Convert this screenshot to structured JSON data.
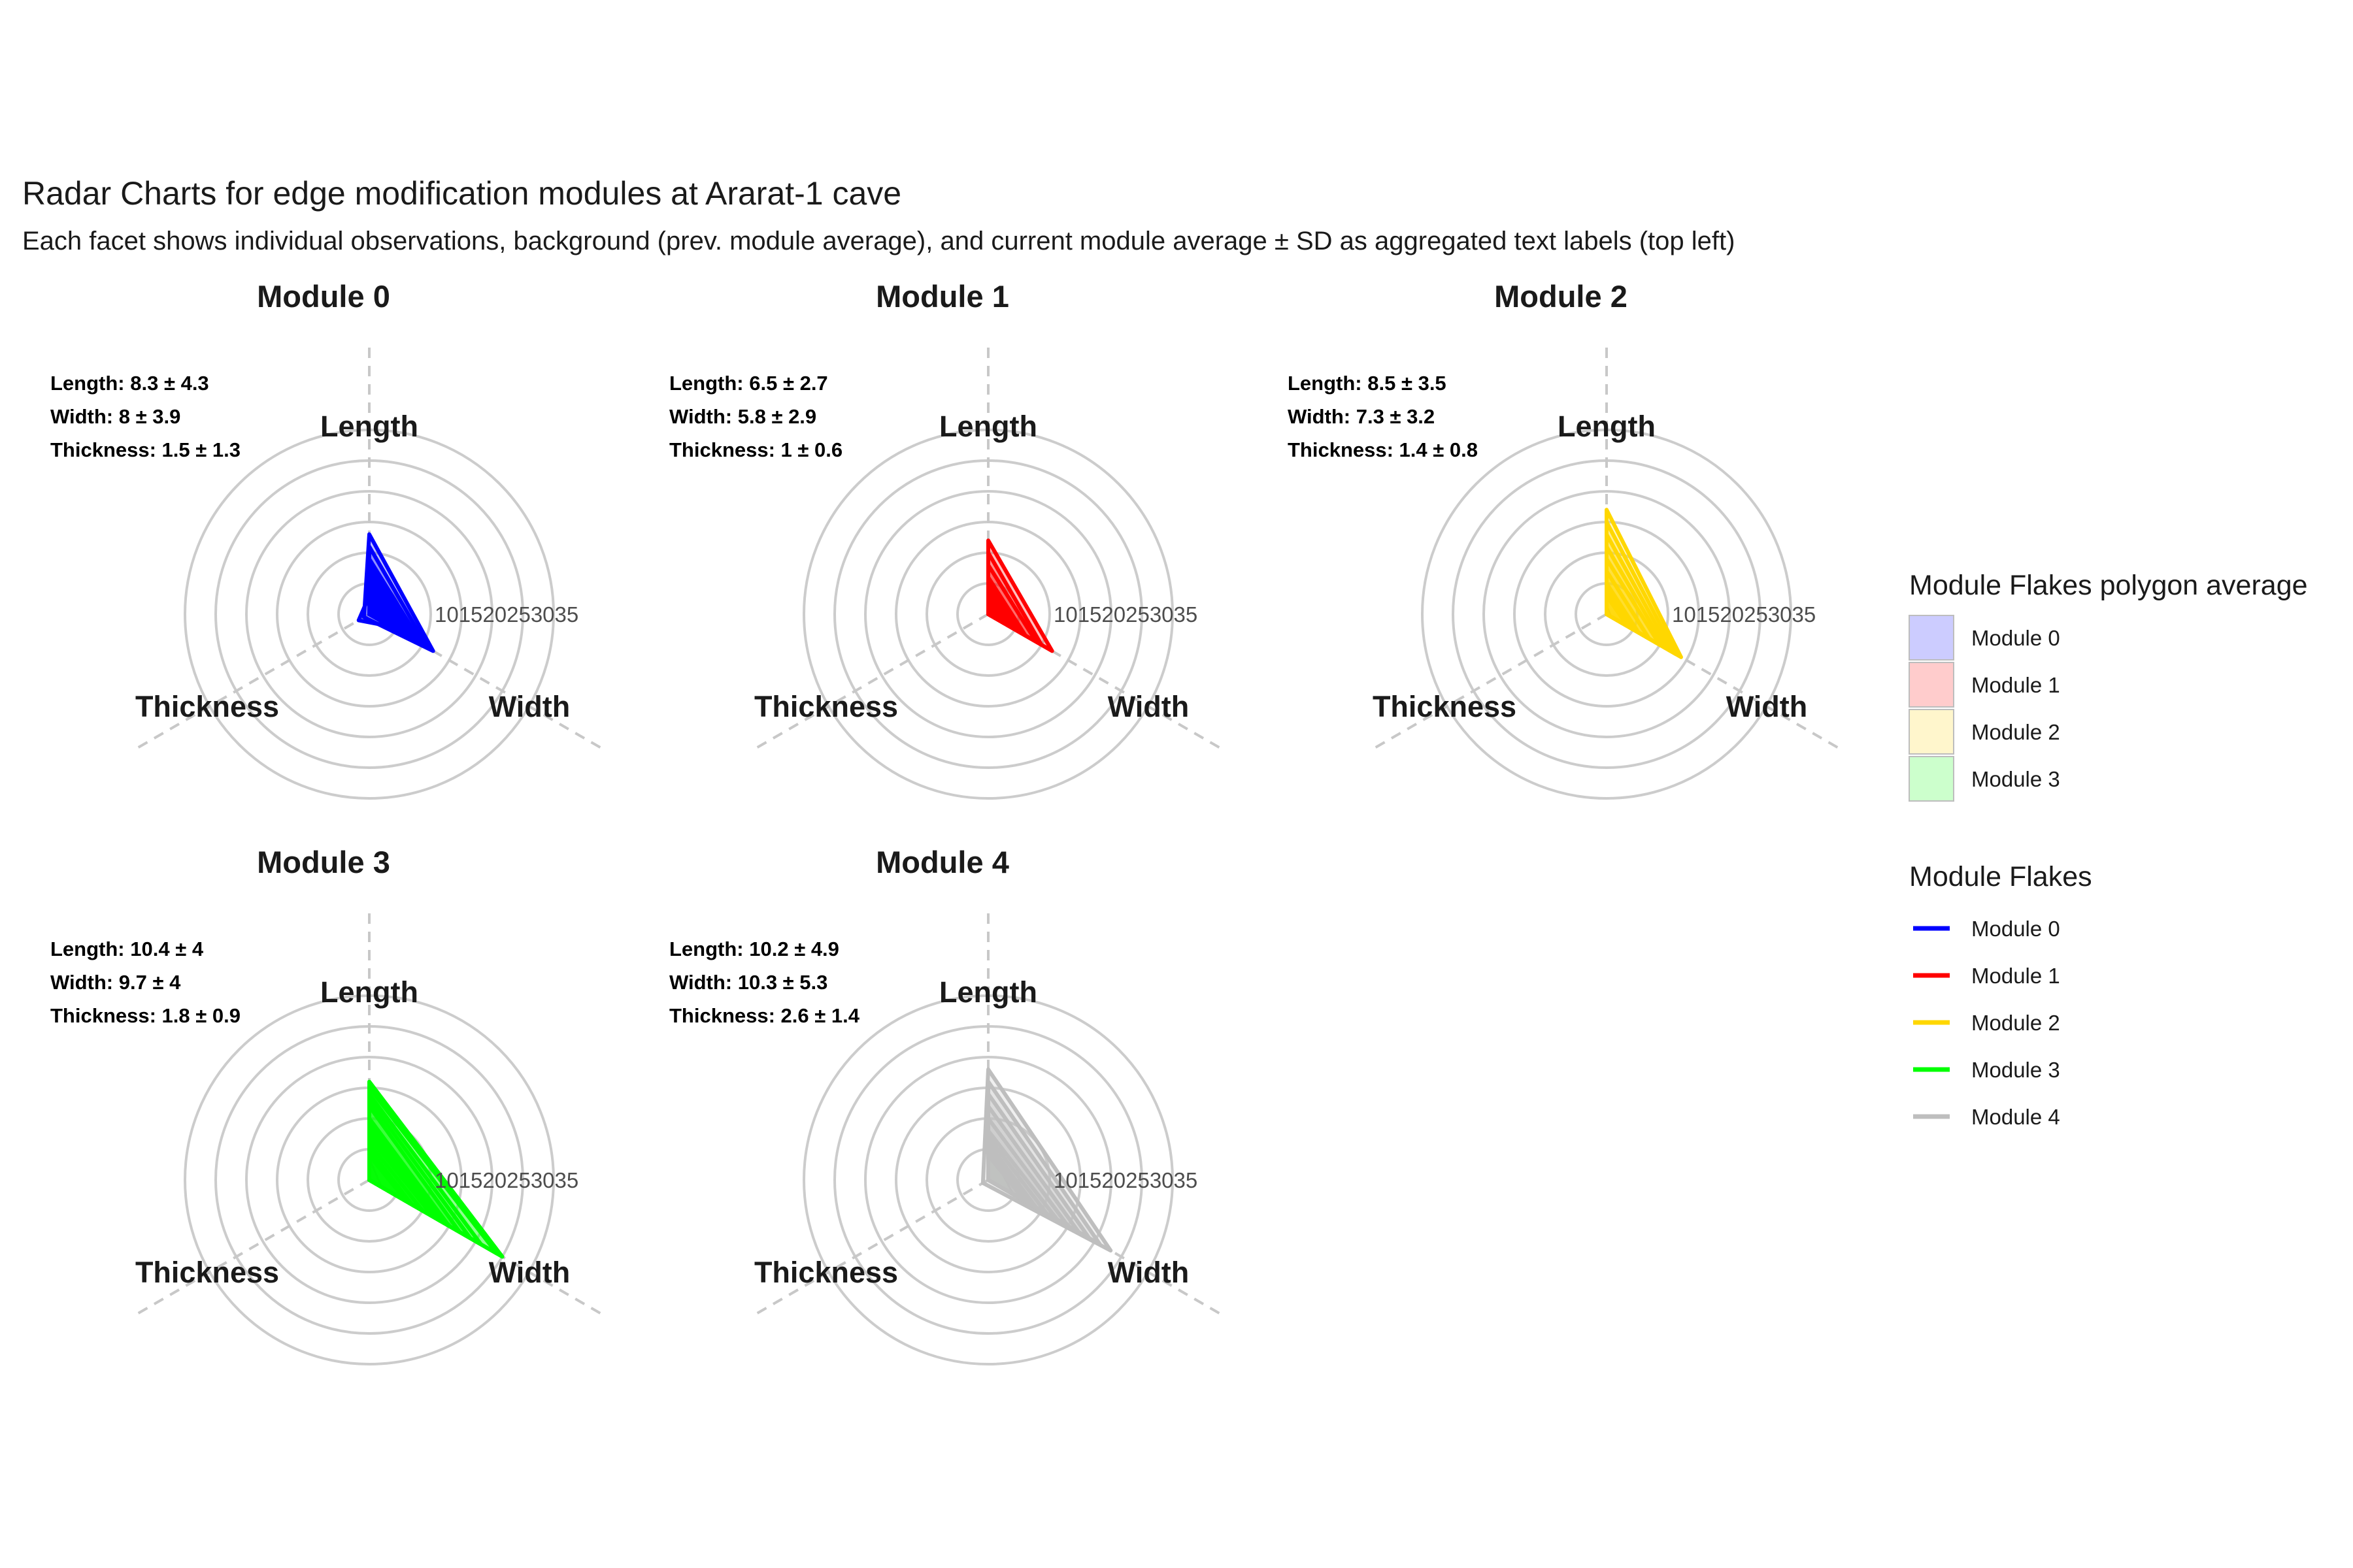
{
  "title": "Radar Charts for edge modification modules at Ararat-1 cave",
  "subtitle": "Each facet shows individual observations, background (prev. module average), and current module average ± SD as aggregated text labels (top left)",
  "chart_data": {
    "type": "radar",
    "axes": [
      "Length",
      "Width",
      "Thickness"
    ],
    "radial_ticks": [
      "10",
      "15",
      "20",
      "25",
      "30",
      "35"
    ],
    "radial_range": [
      5,
      35
    ],
    "grid": true,
    "legend_placement": "right",
    "legend_fill": {
      "title": "Module Flakes polygon average",
      "items": [
        {
          "name": "Module 0",
          "color": "#CCCCFF"
        },
        {
          "name": "Module 1",
          "color": "#FFCCCC"
        },
        {
          "name": "Module 2",
          "color": "#FFF6CC"
        },
        {
          "name": "Module 3",
          "color": "#CCFFCC"
        }
      ]
    },
    "legend_line": {
      "title": "Module Flakes",
      "items": [
        {
          "name": "Module 0",
          "color": "#0000FF"
        },
        {
          "name": "Module 1",
          "color": "#FF0000"
        },
        {
          "name": "Module 2",
          "color": "#FFD700"
        },
        {
          "name": "Module 3",
          "color": "#00FF00"
        },
        {
          "name": "Module 4",
          "color": "#BEBEBE"
        }
      ]
    },
    "facets": [
      {
        "title": "Module 0",
        "color": "#0000FF",
        "background": null,
        "stats": [
          "Length: 8.3 ± 4.3",
          "Width: 8 ± 3.9",
          "Thickness: 1.5 ± 1.3"
        ],
        "observations": [
          [
            18,
            17,
            6
          ],
          [
            16,
            16,
            5
          ],
          [
            14,
            15,
            4
          ],
          [
            13,
            14,
            3
          ],
          [
            12,
            13,
            3
          ],
          [
            11,
            12,
            2
          ],
          [
            10,
            11,
            2
          ],
          [
            9,
            10,
            2
          ],
          [
            8,
            9,
            7
          ],
          [
            7,
            8,
            3
          ],
          [
            6,
            7,
            2
          ]
        ]
      },
      {
        "title": "Module 1",
        "color": "#FF0000",
        "background": {
          "name": "Module 0",
          "color": "#CCCCFF",
          "values": [
            8.3,
            8,
            1.5
          ]
        },
        "stats": [
          "Length: 6.5 ± 2.7",
          "Width: 5.8 ± 2.9",
          "Thickness: 1 ± 0.6"
        ],
        "observations": [
          [
            17,
            17,
            4
          ],
          [
            15,
            15,
            3
          ],
          [
            13,
            14,
            3
          ],
          [
            11,
            12,
            2
          ],
          [
            10,
            11,
            2
          ],
          [
            9,
            10,
            2
          ],
          [
            8,
            9,
            1
          ],
          [
            7,
            8,
            1
          ],
          [
            6,
            7,
            1
          ]
        ]
      },
      {
        "title": "Module 2",
        "color": "#FFD700",
        "background": {
          "name": "Module 1",
          "color": "#FFCCCC",
          "values": [
            6.5,
            5.8,
            1
          ]
        },
        "stats": [
          "Length: 8.5 ± 3.5",
          "Width: 7.3 ± 3.2",
          "Thickness: 1.4 ± 0.8"
        ],
        "observations": [
          [
            22,
            19,
            3
          ],
          [
            20,
            18,
            3
          ],
          [
            18,
            17,
            2
          ],
          [
            16,
            16,
            2
          ],
          [
            14,
            15,
            2
          ],
          [
            12,
            13,
            2
          ],
          [
            10,
            11,
            1
          ],
          [
            9,
            10,
            1
          ],
          [
            8,
            9,
            1
          ]
        ]
      },
      {
        "title": "Module 3",
        "color": "#00FF00",
        "background": {
          "name": "Module 2",
          "color": "#FFF6CC",
          "values": [
            8.5,
            7.3,
            1.4
          ]
        },
        "stats": [
          "Length: 10.4 ± 4",
          "Width: 9.7 ± 4",
          "Thickness: 1.8 ± 0.9"
        ],
        "observations": [
          [
            21,
            30,
            4
          ],
          [
            20,
            29,
            4
          ],
          [
            19,
            26,
            3
          ],
          [
            18,
            24,
            3
          ],
          [
            17,
            22,
            3
          ],
          [
            15,
            20,
            3
          ],
          [
            14,
            19,
            2
          ],
          [
            13,
            18,
            2
          ],
          [
            12,
            17,
            2
          ],
          [
            11,
            15,
            2
          ],
          [
            10,
            13,
            1
          ],
          [
            9,
            12,
            1
          ]
        ]
      },
      {
        "title": "Module 4",
        "color": "#BEBEBE",
        "background": {
          "name": "Module 3",
          "color": "#CCFFCC",
          "values": [
            10.4,
            9.7,
            1.8
          ]
        },
        "stats": [
          "Length: 10.2 ± 4.9",
          "Width: 10.3 ± 5.3",
          "Thickness: 2.6 ± 1.4"
        ],
        "observations": [
          [
            23,
            28,
            6
          ],
          [
            21,
            26,
            5
          ],
          [
            19,
            24,
            5
          ],
          [
            17,
            22,
            4
          ],
          [
            15,
            20,
            4
          ],
          [
            13,
            18,
            3
          ],
          [
            12,
            16,
            3
          ],
          [
            11,
            14,
            2
          ],
          [
            10,
            13,
            2
          ],
          [
            9,
            12,
            2
          ]
        ]
      }
    ]
  }
}
